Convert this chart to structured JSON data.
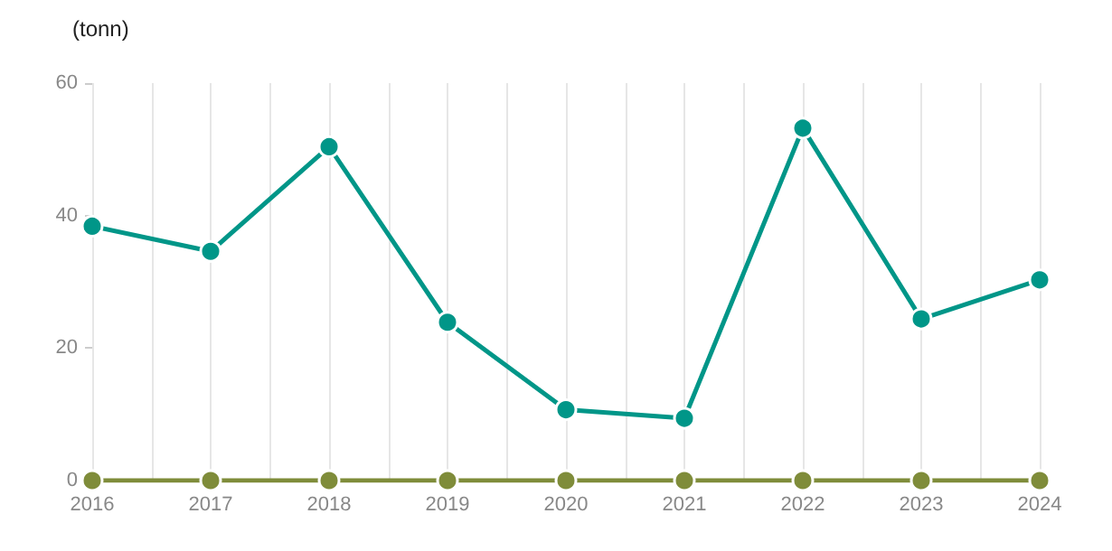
{
  "chart_data": {
    "type": "line",
    "ylabel": "(tonn)",
    "x": [
      2016,
      2017,
      2018,
      2019,
      2020,
      2021,
      2022,
      2023,
      2024
    ],
    "series": [
      {
        "color": "#009688",
        "values": [
          38.4,
          34.6,
          50.4,
          23.9,
          10.7,
          9.4,
          53.2,
          24.4,
          30.3
        ]
      },
      {
        "color": "#7f8c3a",
        "values": [
          0,
          0,
          0,
          0,
          0,
          0,
          0,
          0,
          0
        ]
      }
    ],
    "xlim": [
      2016,
      2024
    ],
    "xticks": [
      2016,
      2017,
      2018,
      2019,
      2020,
      2021,
      2022,
      2023,
      2024
    ],
    "ylim": [
      0,
      60
    ],
    "yticks": [
      0,
      20,
      40,
      60
    ],
    "grid": "x",
    "marker": "circle",
    "line_style": "solid"
  }
}
